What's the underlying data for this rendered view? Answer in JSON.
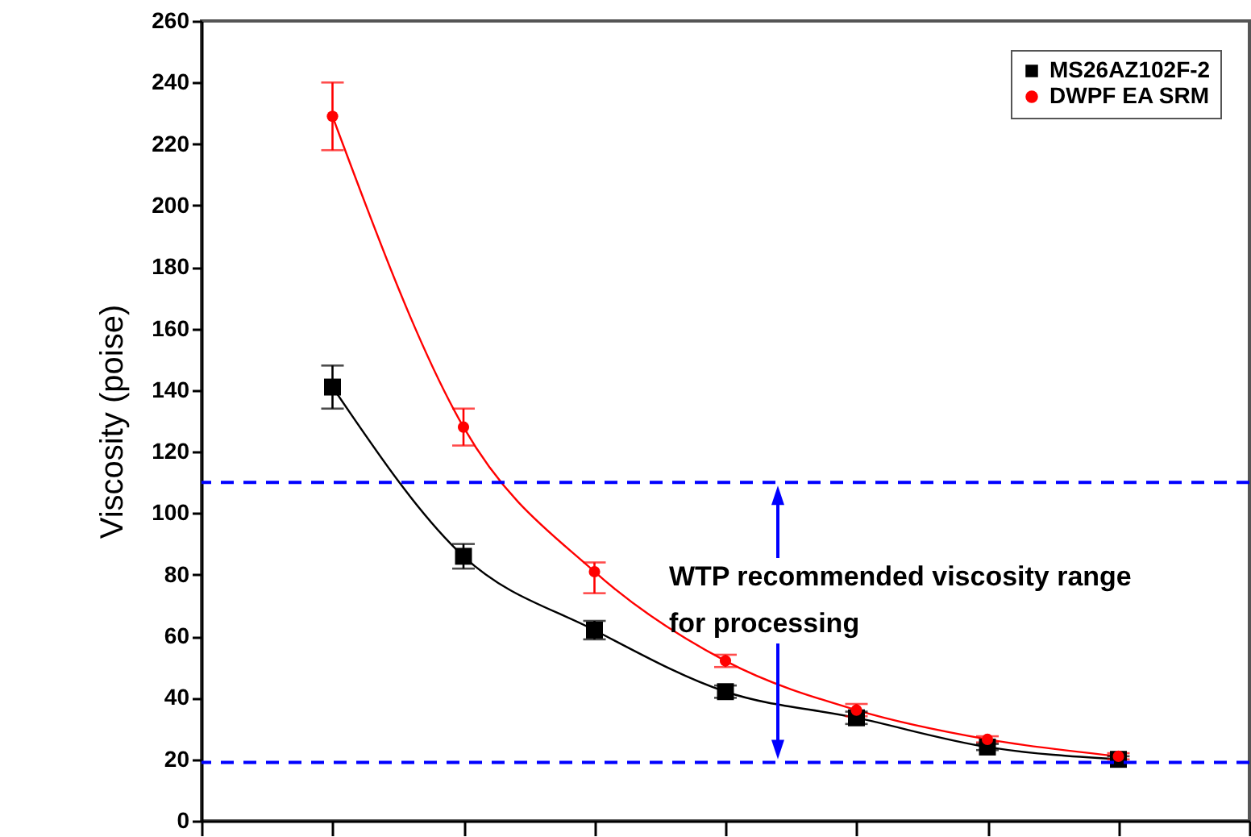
{
  "chart_data": {
    "type": "line",
    "ylabel": "Viscosity (poise)",
    "categories": [
      null,
      null,
      null,
      null,
      null,
      null,
      null
    ],
    "series": [
      {
        "name": "MS26AZ102F-2",
        "color": "#000000",
        "marker": "square",
        "values": [
          141,
          86,
          62,
          42,
          33.5,
          24,
          20
        ],
        "errors": [
          7,
          4,
          3,
          2,
          2,
          1,
          1
        ]
      },
      {
        "name": "DWPF EA SRM",
        "color": "#ff0000",
        "marker": "circle",
        "values": [
          229,
          128,
          81,
          52,
          36,
          26.5,
          21
        ],
        "errors": [
          11,
          6,
          [
            74,
            84
          ],
          2,
          2,
          1,
          1
        ]
      }
    ],
    "ylim": [
      0,
      260
    ],
    "yticks": [
      0,
      20,
      40,
      60,
      80,
      100,
      120,
      140,
      160,
      180,
      200,
      220,
      240,
      260
    ],
    "ref_lines": [
      {
        "axis": "y",
        "value": 110,
        "color": "#0000ff",
        "line_style": "dashed"
      },
      {
        "axis": "y",
        "value": 19,
        "color": "#0000ff",
        "line_style": "dashed"
      }
    ],
    "annotations": [
      "WTP recommended viscosity range for processing"
    ],
    "grid": false,
    "legend": "top right",
    "tick_labels": "y"
  }
}
